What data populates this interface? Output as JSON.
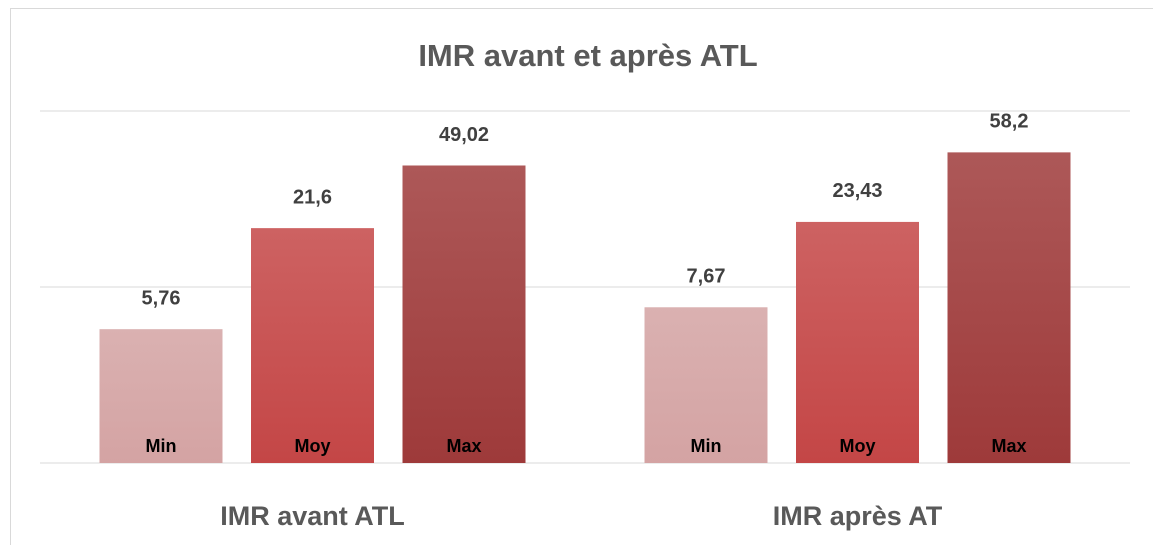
{
  "chart_data": {
    "type": "bar",
    "title": "IMR avant et après ATL",
    "categories": [
      "IMR avant ATL",
      "IMR après AT"
    ],
    "series": [
      {
        "name": "Min",
        "color": "#d4a3a3",
        "values": [
          5.76,
          7.67
        ],
        "value_labels": [
          "5,76",
          "7,67"
        ]
      },
      {
        "name": "Moy",
        "color": "#c44646",
        "values": [
          21.6,
          23.43
        ],
        "value_labels": [
          "21,6",
          "23,43"
        ]
      },
      {
        "name": "Max",
        "color": "#9e3a3a",
        "values": [
          49.02,
          58.2
        ],
        "value_labels": [
          "49,02",
          "58,2"
        ]
      }
    ],
    "log_scale": true,
    "ylim": [
      1,
      100
    ],
    "yticks": [
      1,
      10,
      100
    ],
    "grid": true
  }
}
